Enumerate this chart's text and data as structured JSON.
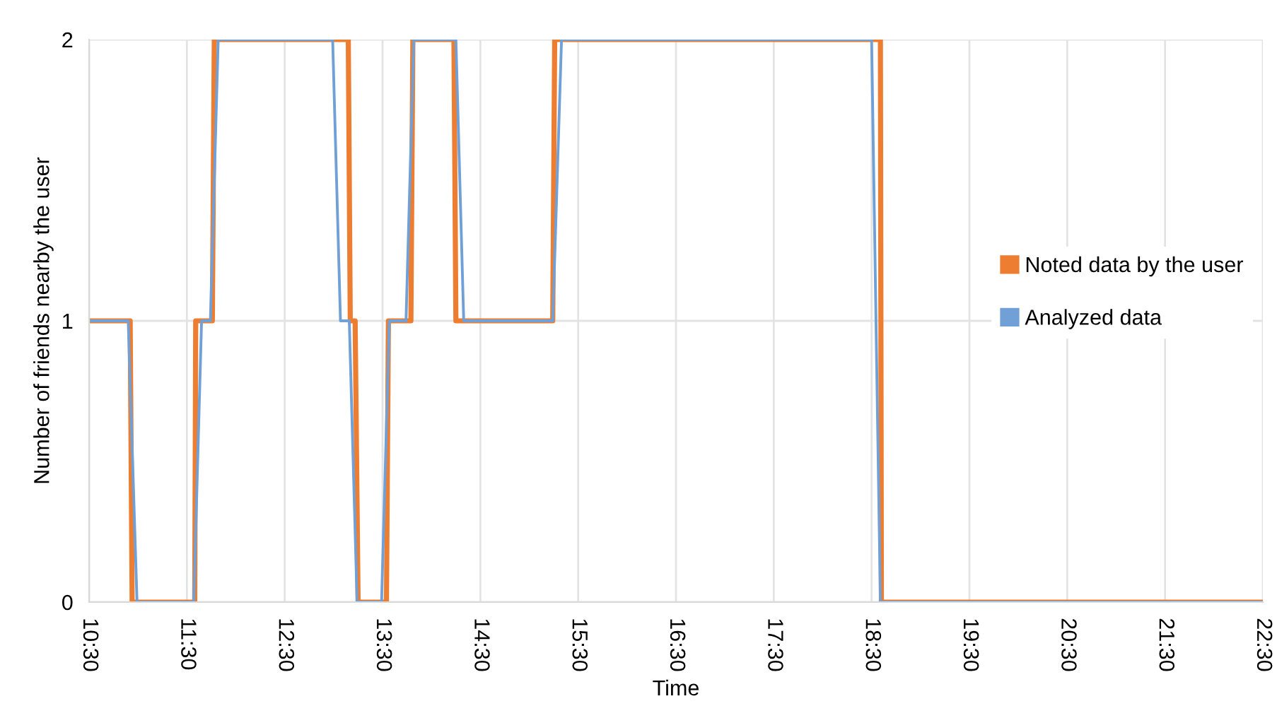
{
  "chart_data": {
    "type": "line",
    "xlabel": "Time",
    "ylabel": "Number of friends nearby the user",
    "xlim": [
      10.5,
      22.5
    ],
    "xticks": [
      {
        "value": 10.5,
        "label": "10:30"
      },
      {
        "value": 11.5,
        "label": "11:30"
      },
      {
        "value": 12.5,
        "label": "12:30"
      },
      {
        "value": 13.5,
        "label": "13:30"
      },
      {
        "value": 14.5,
        "label": "14:30"
      },
      {
        "value": 15.5,
        "label": "15:30"
      },
      {
        "value": 16.5,
        "label": "16:30"
      },
      {
        "value": 17.5,
        "label": "17:30"
      },
      {
        "value": 18.5,
        "label": "18:30"
      },
      {
        "value": 19.5,
        "label": "19:30"
      },
      {
        "value": 20.5,
        "label": "20:30"
      },
      {
        "value": 21.5,
        "label": "21:30"
      },
      {
        "value": 22.5,
        "label": "22:30"
      }
    ],
    "ylim": [
      0,
      2
    ],
    "yticks": [
      0,
      1,
      2
    ],
    "grid": true,
    "legend": "right",
    "marker": "none",
    "line_style": "solid",
    "series": [
      {
        "name": "Noted data by the user",
        "color": "#ed7d31",
        "x": [
          10.5,
          10.92,
          10.94,
          11.58,
          11.59,
          11.76,
          11.78,
          13.15,
          13.17,
          13.22,
          13.25,
          13.54,
          13.56,
          13.79,
          13.81,
          14.23,
          14.25,
          15.24,
          15.26,
          18.59,
          18.6,
          22.5
        ],
        "values": [
          1,
          1,
          0,
          0,
          1,
          1,
          2,
          2,
          1,
          1,
          0,
          0,
          1,
          1,
          2,
          2,
          1,
          1,
          2,
          2,
          0,
          0
        ]
      },
      {
        "name": "Analyzed data",
        "color": "#70a0d6",
        "x": [
          10.5,
          10.9,
          10.99,
          11.57,
          11.65,
          11.74,
          11.82,
          12.99,
          13.07,
          13.16,
          13.24,
          13.49,
          13.57,
          13.74,
          13.82,
          14.25,
          14.33,
          15.24,
          15.33,
          18.5,
          18.59,
          22.5
        ],
        "values": [
          1,
          1,
          0,
          0,
          1,
          1,
          2,
          2,
          1,
          1,
          0,
          0,
          1,
          1,
          2,
          2,
          1,
          1,
          2,
          2,
          0,
          0
        ]
      }
    ]
  }
}
